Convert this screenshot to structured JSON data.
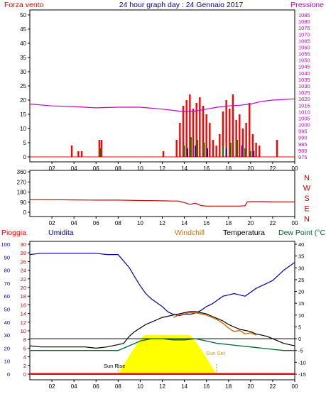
{
  "header": {
    "wind_label": "Forza vento",
    "title": "24 hour graph day : 24 Gennaio 2017",
    "pressure_label": "Pressione"
  },
  "legend": {
    "rain": "Pioggia",
    "humidity": "Umidita",
    "windchill": "Windchill",
    "temperature": "Temperatura",
    "dewpoint": "Dew Point (°C"
  },
  "annotations": {
    "sunrise": "Sun Rise",
    "sunset": "Sun Set"
  },
  "colors": {
    "wind": "#ff0000",
    "gust_green": "#008000",
    "gust_blue": "#0000c0",
    "pressure": "#cc00cc",
    "direction": "#cc0000",
    "humidity": "#0000aa",
    "temperature": "#000000",
    "windchill": "#d07000",
    "dewpoint": "#006633",
    "rain": "#ff0000",
    "sun": "#ffff00",
    "frame": "#000000"
  },
  "chart_data": [
    {
      "type": "line",
      "name": "wind_pressure",
      "x_ticks": [
        "02",
        "04",
        "06",
        "08",
        "10",
        "12",
        "14",
        "16",
        "18",
        "20",
        "22",
        "00"
      ],
      "y_left_ticks": [
        "0",
        "5",
        "10",
        "15",
        "20",
        "25",
        "30",
        "35",
        "40",
        "45",
        "50"
      ],
      "y_left_range": [
        0,
        50
      ],
      "y_right_ticks": [
        "975",
        "980",
        "985",
        "990",
        "995",
        "1000",
        "1005",
        "1010",
        "1015",
        "1020",
        "1025",
        "1030",
        "1035",
        "1040",
        "1045",
        "1050",
        "1055",
        "1060",
        "1065",
        "1070",
        "1075",
        "1080",
        "1085"
      ],
      "y_right_range": [
        972.5,
        1087.5
      ],
      "pressure": {
        "x": [
          0,
          2,
          4,
          6,
          8,
          10,
          12,
          13,
          14,
          15,
          16,
          17,
          18,
          19,
          20,
          21,
          22,
          23,
          24
        ],
        "y": [
          1016,
          1014.5,
          1014,
          1013,
          1013.5,
          1013.5,
          1012,
          1011,
          1010,
          1010.5,
          1012,
          1013.5,
          1014.5,
          1015,
          1016,
          1018,
          1019,
          1019.5,
          1020
        ]
      },
      "wind_bars": [
        {
          "x": 3.8,
          "v": 4
        },
        {
          "x": 4.4,
          "v": 2
        },
        {
          "x": 4.7,
          "v": 2
        },
        {
          "x": 6.3,
          "v": 6
        },
        {
          "x": 6.5,
          "v": 6
        },
        {
          "x": 12.1,
          "v": 2
        },
        {
          "x": 13.3,
          "v": 6
        },
        {
          "x": 13.6,
          "v": 12
        },
        {
          "x": 13.9,
          "v": 18
        },
        {
          "x": 14.2,
          "v": 20
        },
        {
          "x": 14.5,
          "v": 22
        },
        {
          "x": 14.8,
          "v": 17
        },
        {
          "x": 15.1,
          "v": 19
        },
        {
          "x": 15.4,
          "v": 21
        },
        {
          "x": 15.7,
          "v": 18
        },
        {
          "x": 16.0,
          "v": 15
        },
        {
          "x": 16.3,
          "v": 12
        },
        {
          "x": 16.6,
          "v": 6
        },
        {
          "x": 16.9,
          "v": 4
        },
        {
          "x": 17.2,
          "v": 8
        },
        {
          "x": 17.5,
          "v": 16
        },
        {
          "x": 17.8,
          "v": 20
        },
        {
          "x": 18.1,
          "v": 17
        },
        {
          "x": 18.4,
          "v": 22
        },
        {
          "x": 18.7,
          "v": 13
        },
        {
          "x": 19.0,
          "v": 15
        },
        {
          "x": 19.3,
          "v": 10
        },
        {
          "x": 19.6,
          "v": 12
        },
        {
          "x": 19.9,
          "v": 19
        },
        {
          "x": 20.2,
          "v": 8
        },
        {
          "x": 20.5,
          "v": 5
        },
        {
          "x": 20.8,
          "v": 4
        },
        {
          "x": 22.4,
          "v": 6
        }
      ],
      "gust_green_bars": [
        {
          "x": 6.4,
          "v": 3
        },
        {
          "x": 14.0,
          "v": 4
        },
        {
          "x": 14.6,
          "v": 7
        },
        {
          "x": 15.2,
          "v": 6
        },
        {
          "x": 15.8,
          "v": 5
        },
        {
          "x": 17.5,
          "v": 4
        },
        {
          "x": 18.2,
          "v": 5
        },
        {
          "x": 18.8,
          "v": 6
        },
        {
          "x": 19.5,
          "v": 3
        },
        {
          "x": 20.0,
          "v": 2
        }
      ],
      "gust_blue_bars": [
        {
          "x": 14.3,
          "v": 3
        },
        {
          "x": 15.0,
          "v": 4
        },
        {
          "x": 16.1,
          "v": 3
        },
        {
          "x": 17.8,
          "v": 3
        },
        {
          "x": 19.2,
          "v": 4
        },
        {
          "x": 20.3,
          "v": 2
        }
      ]
    },
    {
      "type": "line",
      "name": "wind_direction",
      "x_ticks": [
        "02",
        "04",
        "06",
        "08",
        "10",
        "12",
        "14",
        "16",
        "18",
        "20",
        "22",
        "00"
      ],
      "y_ticks": [
        "0",
        "90",
        "180",
        "270",
        "360"
      ],
      "y_range": [
        0,
        360
      ],
      "right_labels": [
        "N",
        "W",
        "S",
        "E",
        "N"
      ],
      "x": [
        0,
        2,
        4,
        6,
        8,
        10,
        12,
        13,
        13.5,
        14.2,
        14.5,
        15,
        15.5,
        16,
        17,
        18,
        19,
        19.5,
        19.7,
        20,
        21,
        22,
        23,
        24
      ],
      "y": [
        112,
        112,
        110,
        108,
        108,
        104,
        102,
        100,
        100,
        80,
        70,
        80,
        60,
        55,
        55,
        55,
        55,
        58,
        92,
        95,
        95,
        93,
        93,
        93
      ]
    },
    {
      "type": "line",
      "name": "temp_humidity",
      "x_ticks": [
        "02",
        "04",
        "06",
        "08",
        "10",
        "12",
        "14",
        "16",
        "18",
        "20",
        "22",
        "00"
      ],
      "humidity_ticks": [
        "0",
        "10",
        "20",
        "30",
        "40",
        "50",
        "60",
        "70",
        "80",
        "90",
        "100"
      ],
      "humidity_range": [
        0,
        100
      ],
      "rain_ticks": [
        "0",
        "2",
        "4",
        "6",
        "8",
        "10",
        "12",
        "14",
        "16",
        "18",
        "20",
        "22",
        "24",
        "26",
        "28",
        "30"
      ],
      "rain_range": [
        0,
        30
      ],
      "temp_ticks": [
        "-15",
        "-10",
        "-5",
        "0",
        "5",
        "10",
        "15",
        "20",
        "25",
        "30",
        "35",
        "40"
      ],
      "temp_range": [
        -15,
        40
      ],
      "humidity": {
        "x": [
          0,
          1,
          2,
          3,
          4,
          5,
          6,
          7,
          8,
          9,
          9.5,
          10,
          10.5,
          11,
          11.5,
          12,
          12.5,
          13,
          13.5,
          14,
          14.5,
          15,
          15.5,
          16,
          16.5,
          17,
          17.5,
          18,
          18.5,
          19,
          19.5,
          20,
          20.5,
          21,
          21.5,
          22,
          22.5,
          23,
          23.5,
          24
        ],
        "y": [
          92,
          93,
          93,
          93,
          93,
          93,
          93,
          92,
          92,
          82,
          75,
          68,
          62,
          58,
          55,
          52,
          48,
          46,
          45,
          46,
          46,
          47,
          49,
          52,
          54,
          57,
          60,
          61,
          62,
          61,
          60,
          63,
          66,
          68,
          70,
          72,
          76,
          80,
          83,
          86
        ]
      },
      "temperature": {
        "x": [
          0,
          1,
          2,
          3,
          4,
          5,
          6,
          7,
          8,
          8.5,
          9,
          9.5,
          10,
          10.5,
          11,
          11.5,
          12,
          12.5,
          13,
          13.5,
          14,
          14.5,
          15,
          15.5,
          16,
          16.5,
          17,
          17.5,
          18,
          18.5,
          19,
          19.5,
          20,
          20.5,
          21,
          21.5,
          22,
          22.5,
          23,
          23.5,
          24
        ],
        "y": [
          -3,
          -3.5,
          -3.5,
          -3.5,
          -3.5,
          -3.5,
          -4,
          -3.5,
          -2.5,
          -2,
          1,
          3,
          4.5,
          6,
          7,
          8,
          9,
          9.5,
          10,
          10.5,
          11,
          11.5,
          11.5,
          11,
          10.5,
          9.5,
          8.5,
          7.5,
          6,
          5,
          4,
          3.5,
          3,
          2,
          1.5,
          1,
          0,
          -1,
          -2,
          -2.5,
          -3
        ]
      },
      "windchill": {
        "x": [
          13,
          13.5,
          14,
          14.5,
          15,
          15.5,
          16,
          16.5,
          17,
          17.5,
          18,
          18.5,
          19,
          19.5,
          20,
          20.5
        ],
        "y": [
          9,
          10,
          10.5,
          11,
          11,
          10.5,
          10,
          9,
          8,
          6.5,
          4.5,
          3,
          3.5,
          2,
          2.5,
          1.5
        ]
      },
      "dewpoint": {
        "x": [
          0,
          1,
          2,
          3,
          4,
          5,
          6,
          7,
          8,
          9,
          10,
          11,
          12,
          13,
          14,
          15,
          16,
          17,
          18,
          19,
          20,
          21,
          22,
          23,
          24
        ],
        "y": [
          -5,
          -5,
          -5,
          -5,
          -5,
          -5,
          -5,
          -5,
          -5,
          -3,
          -1,
          0,
          0,
          -0.5,
          -0.5,
          0,
          -1,
          -2,
          -2.5,
          -3,
          -3.5,
          -4,
          -4.5,
          -5,
          -5
        ]
      },
      "freezing_line": 0,
      "sunrise_x": 8.0,
      "sunset_x": 16.9,
      "sun_max_humidity_units": 30,
      "rain_total": 0
    }
  ]
}
